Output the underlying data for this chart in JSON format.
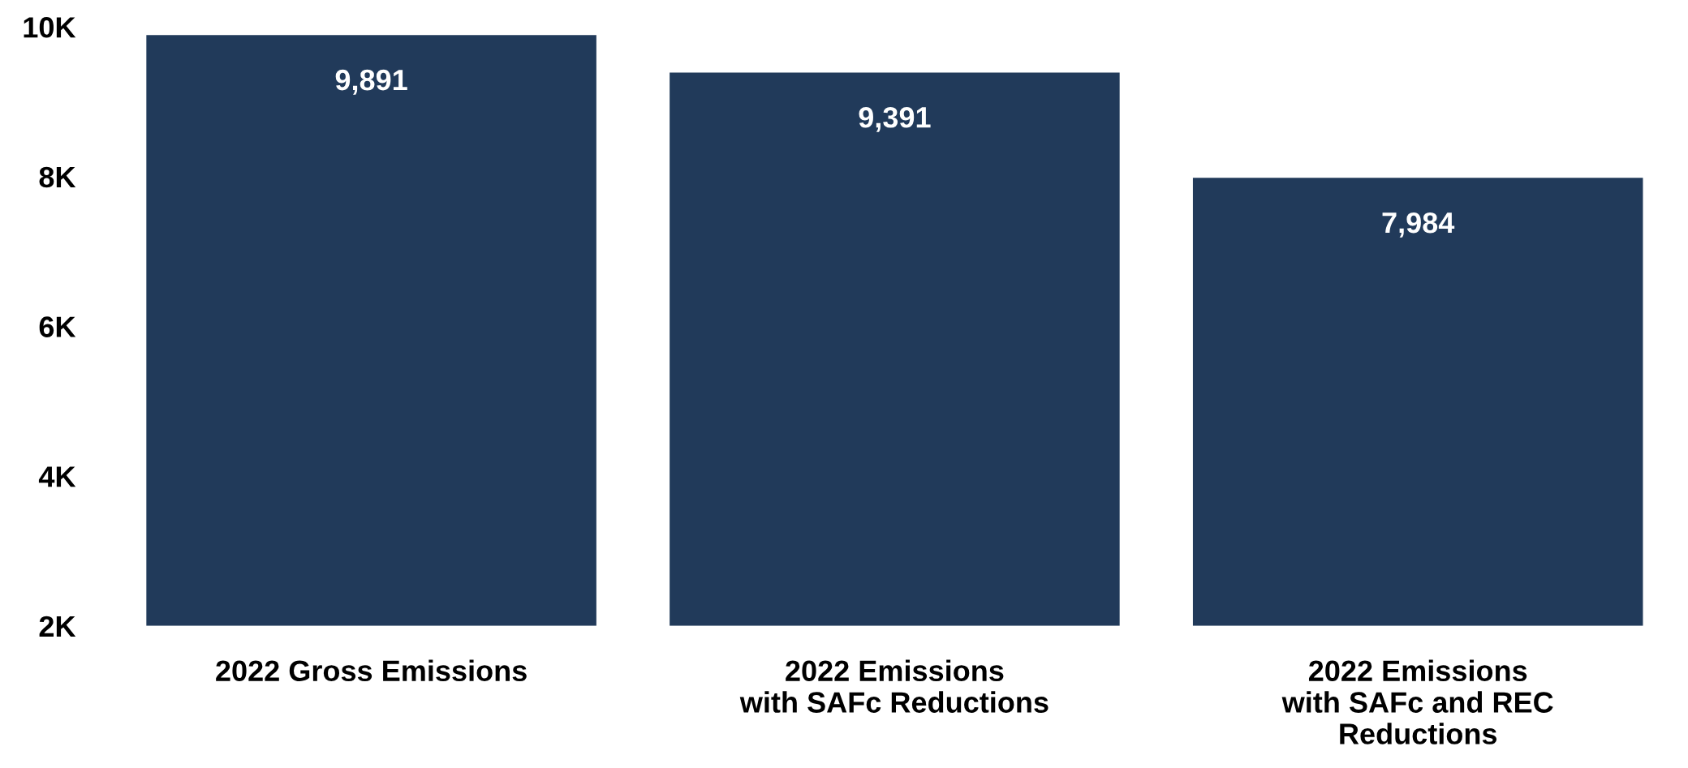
{
  "chart_data": {
    "type": "bar",
    "categories": [
      "2022 Gross Emissions",
      "2022 Emissions\nwith SAFc Reductions",
      "2022 Emissions\nwith SAFc and REC\nReductions"
    ],
    "values": [
      9891,
      9391,
      7984
    ],
    "value_labels": [
      "9,891",
      "9,391",
      "7,984"
    ],
    "color": "#213a5a",
    "ylim": [
      2000,
      10000
    ],
    "yticks": [
      {
        "value": 2000,
        "label": "2K"
      },
      {
        "value": 4000,
        "label": "4K"
      },
      {
        "value": 6000,
        "label": "6K"
      },
      {
        "value": 8000,
        "label": "8K"
      },
      {
        "value": 10000,
        "label": "10K"
      }
    ],
    "grid": false,
    "legend": false
  }
}
